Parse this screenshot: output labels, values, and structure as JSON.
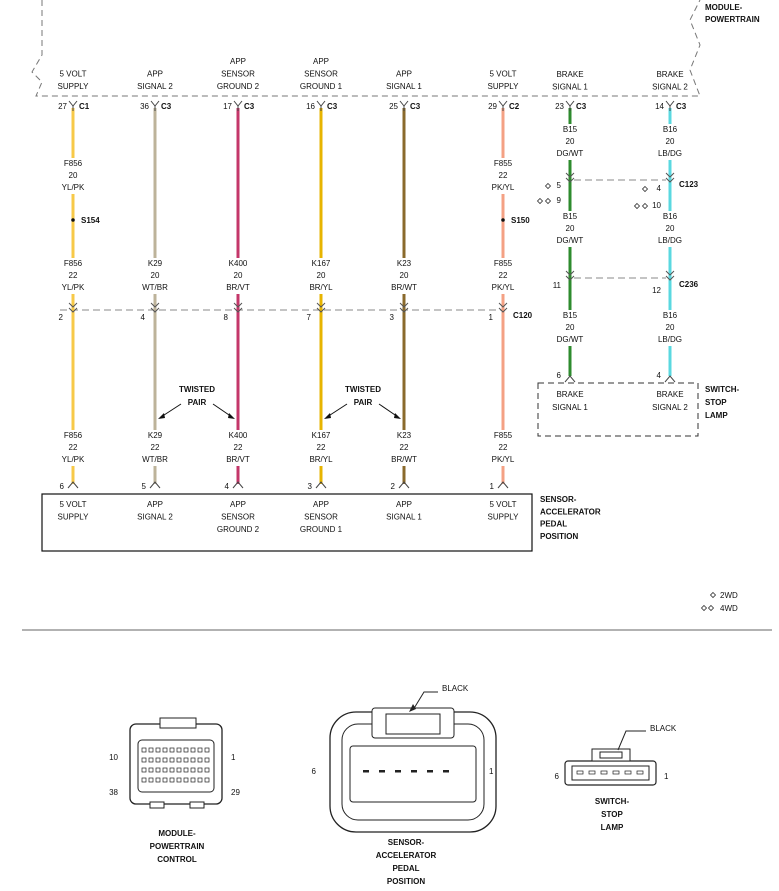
{
  "module": {
    "label": [
      "MODULE-",
      "POWERTRAIN"
    ]
  },
  "circuits": [
    {
      "header": [
        "5 VOLT",
        "SUPPLY"
      ],
      "cavity": "27",
      "connector": "C1",
      "splice": "S154",
      "segments": [
        {
          "circuit": "F856",
          "gauge": "20",
          "color": "YL/PK"
        },
        {
          "circuit": "F856",
          "gauge": "22",
          "color": "YL/PK"
        },
        {
          "circuit": "F856",
          "gauge": "22",
          "color": "YL/PK"
        }
      ],
      "c120_cavity": "2",
      "sensor_cavity": "6",
      "sensor_label": [
        "5 VOLT",
        "SUPPLY"
      ]
    },
    {
      "header": [
        "APP",
        "SIGNAL 2"
      ],
      "cavity": "36",
      "connector": "C3",
      "segments": [
        {
          "circuit": "K29",
          "gauge": "20",
          "color": "WT/BR"
        },
        {
          "circuit": "K29",
          "gauge": "22",
          "color": "WT/BR"
        }
      ],
      "c120_cavity": "4",
      "sensor_cavity": "5",
      "sensor_label": [
        "APP",
        "SIGNAL 2"
      ]
    },
    {
      "header": [
        "APP",
        "SENSOR",
        "GROUND 2"
      ],
      "cavity": "17",
      "connector": "C3",
      "segments": [
        {
          "circuit": "K400",
          "gauge": "20",
          "color": "BR/VT"
        },
        {
          "circuit": "K400",
          "gauge": "22",
          "color": "BR/VT"
        }
      ],
      "c120_cavity": "8",
      "sensor_cavity": "4",
      "sensor_label": [
        "APP",
        "SENSOR",
        "GROUND 2"
      ]
    },
    {
      "header": [
        "APP",
        "SENSOR",
        "GROUND 1"
      ],
      "cavity": "16",
      "connector": "C3",
      "segments": [
        {
          "circuit": "K167",
          "gauge": "20",
          "color": "BR/YL"
        },
        {
          "circuit": "K167",
          "gauge": "22",
          "color": "BR/YL"
        }
      ],
      "c120_cavity": "7",
      "sensor_cavity": "3",
      "sensor_label": [
        "APP",
        "SENSOR",
        "GROUND 1"
      ]
    },
    {
      "header": [
        "APP",
        "SIGNAL 1"
      ],
      "cavity": "25",
      "connector": "C3",
      "segments": [
        {
          "circuit": "K23",
          "gauge": "20",
          "color": "BR/WT"
        },
        {
          "circuit": "K23",
          "gauge": "22",
          "color": "BR/WT"
        }
      ],
      "c120_cavity": "3",
      "sensor_cavity": "2",
      "sensor_label": [
        "APP",
        "SIGNAL 1"
      ]
    },
    {
      "header": [
        "5 VOLT",
        "SUPPLY"
      ],
      "cavity": "29",
      "connector": "C2",
      "splice": "S150",
      "segments": [
        {
          "circuit": "F855",
          "gauge": "22",
          "color": "PK/YL"
        },
        {
          "circuit": "F855",
          "gauge": "22",
          "color": "PK/YL"
        },
        {
          "circuit": "F855",
          "gauge": "22",
          "color": "PK/YL"
        }
      ],
      "c120_cavity": "1",
      "sensor_cavity": "1",
      "sensor_label": [
        "5 VOLT",
        "SUPPLY"
      ]
    }
  ],
  "c120": "C120",
  "twisted_pairs": [
    {
      "label": [
        "TWISTED",
        "PAIR"
      ]
    },
    {
      "label": [
        "TWISTED",
        "PAIR"
      ]
    }
  ],
  "sensor": {
    "label": [
      "SENSOR-",
      "ACCELERATOR",
      "PEDAL",
      "POSITION"
    ]
  },
  "brake_circuits": [
    {
      "header": [
        "BRAKE",
        "SIGNAL 1"
      ],
      "cavity": "23",
      "connector": "C3",
      "segments": [
        {
          "circuit": "B15",
          "gauge": "20",
          "color": "DG/WT"
        },
        {
          "circuit": "B15",
          "gauge": "20",
          "color": "DG/WT"
        },
        {
          "circuit": "B15",
          "gauge": "20",
          "color": "DG/WT"
        }
      ],
      "c123_cavities": [
        "5",
        "9"
      ],
      "c236_cavity": "11",
      "switch_cavity": "6",
      "switch_label": [
        "BRAKE",
        "SIGNAL 1"
      ]
    },
    {
      "header": [
        "BRAKE",
        "SIGNAL 2"
      ],
      "cavity": "14",
      "connector": "C3",
      "segments": [
        {
          "circuit": "B16",
          "gauge": "20",
          "color": "LB/DG"
        },
        {
          "circuit": "B16",
          "gauge": "20",
          "color": "LB/DG"
        },
        {
          "circuit": "B16",
          "gauge": "20",
          "color": "LB/DG"
        }
      ],
      "c123_cavities": [
        "4",
        "10"
      ],
      "c236_cavity": "12",
      "switch_cavity": "4",
      "switch_label": [
        "BRAKE",
        "SIGNAL 2"
      ]
    }
  ],
  "c123": "C123",
  "c236": "C236",
  "switch": {
    "label": [
      "SWITCH-",
      "STOP",
      "LAMP"
    ]
  },
  "legend": [
    "2WD",
    "4WD"
  ],
  "connector_views": {
    "pcm": {
      "pins": [
        "10",
        "1",
        "38",
        "29"
      ],
      "label": [
        "MODULE-",
        "POWERTRAIN",
        "CONTROL"
      ]
    },
    "sensor": {
      "color": "BLACK",
      "pins": [
        "6",
        "1"
      ],
      "label": [
        "SENSOR-",
        "ACCELERATOR",
        "PEDAL",
        "POSITION"
      ]
    },
    "switch": {
      "color": "BLACK",
      "pins": [
        "6",
        "1"
      ],
      "label": [
        "SWITCH-",
        "STOP",
        "LAMP"
      ]
    }
  }
}
